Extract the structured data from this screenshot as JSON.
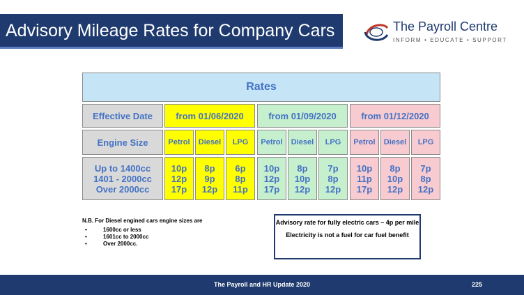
{
  "header": {
    "title": "Advisory Mileage Rates for Company Cars",
    "brand_name": "The Payroll Centre",
    "brand_tagline": "INFORM • EDUCATE • SUPPORT"
  },
  "table": {
    "heading": "Rates",
    "effective_date_label": "Effective Date",
    "engine_size_label": "Engine Size",
    "engine_sizes": [
      "Up to 1400cc",
      "1401 - 2000cc",
      "Over 2000cc"
    ],
    "fuels": [
      "Petrol",
      "Diesel",
      "LPG"
    ],
    "periods": [
      {
        "date": "from 01/06/2020",
        "rates": {
          "petrol": [
            "10p",
            "12p",
            "17p"
          ],
          "diesel": [
            "8p",
            "9p",
            "12p"
          ],
          "lpg": [
            "6p",
            "8p",
            "11p"
          ]
        }
      },
      {
        "date": "from 01/09/2020",
        "rates": {
          "petrol": [
            "10p",
            "12p",
            "17p"
          ],
          "diesel": [
            "8p",
            "10p",
            "12p"
          ],
          "lpg": [
            "7p",
            "8p",
            "12p"
          ]
        }
      },
      {
        "date": "from 01/12/2020",
        "rates": {
          "petrol": [
            "10p",
            "11p",
            "17p"
          ],
          "diesel": [
            "8p",
            "10p",
            "12p"
          ],
          "lpg": [
            "7p",
            "8p",
            "12p"
          ]
        }
      }
    ]
  },
  "notes": {
    "heading": "N.B. For Diesel engined cars engine sizes are",
    "items": [
      "1600cc or less",
      "1601cc to 2000cc",
      "Over 2000cc."
    ]
  },
  "electric": {
    "line1": "Advisory rate for fully electric cars – 4p per mile",
    "line2": "Electricity is not a fuel for car fuel benefit"
  },
  "footer": {
    "text": "The Payroll and HR Update 2020",
    "page_number": "225"
  },
  "colors": {
    "navy": "#1f3a6e",
    "period1": "#ffff00",
    "period2": "#c6efce",
    "period3": "#f8cbd0",
    "rates_header": "#c5e5f7",
    "text_blue": "#4472c4"
  }
}
